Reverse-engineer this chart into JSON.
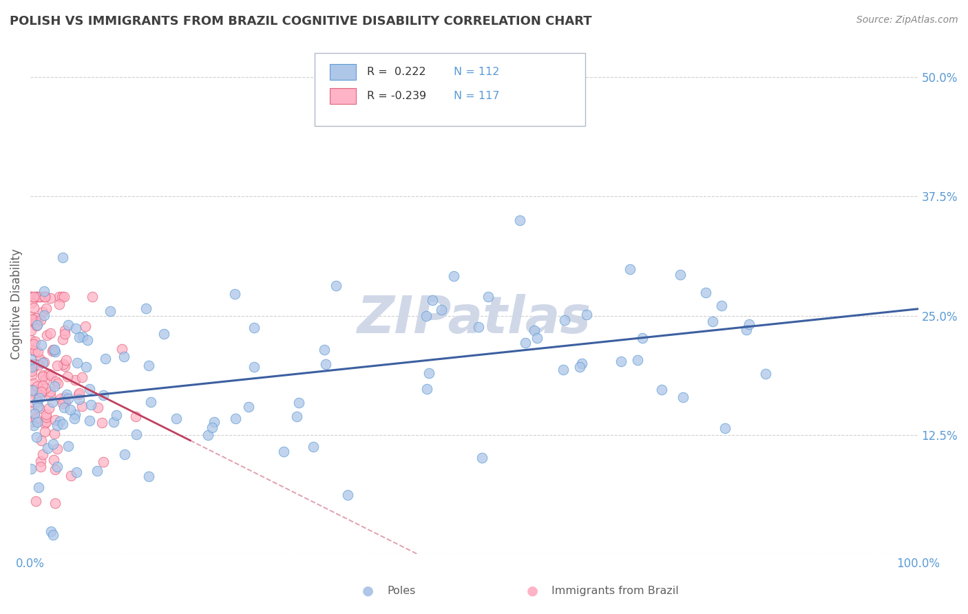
{
  "title": "POLISH VS IMMIGRANTS FROM BRAZIL COGNITIVE DISABILITY CORRELATION CHART",
  "source": "Source: ZipAtlas.com",
  "xlabel_poles": "Poles",
  "xlabel_brazil": "Immigrants from Brazil",
  "ylabel": "Cognitive Disability",
  "r_poles": 0.222,
  "n_poles": 112,
  "r_brazil": -0.239,
  "n_brazil": 117,
  "xlim": [
    0.0,
    1.0
  ],
  "ylim": [
    0.0,
    0.525
  ],
  "yticks": [
    0.0,
    0.125,
    0.25,
    0.375,
    0.5
  ],
  "ytick_labels": [
    "",
    "12.5%",
    "25.0%",
    "37.5%",
    "50.0%"
  ],
  "background_color": "#ffffff",
  "grid_color": "#d0d0d0",
  "poles_color": "#aec6e8",
  "poles_edge_color": "#5b9bd5",
  "brazil_color": "#ffb3c6",
  "brazil_edge_color": "#e0607a",
  "reg_poles_color": "#3c5fa0",
  "reg_brazil_solid_color": "#c04060",
  "reg_brazil_dash_color": "#e0a0b0",
  "watermark": "ZIPatlas",
  "watermark_color": "#d0d8e8",
  "title_color": "#404040",
  "title_fontsize": 13,
  "axis_label_color": "#606060",
  "tick_label_color": "#5b9bd5",
  "legend_r_color": "#333333",
  "legend_n_color": "#5b9bd5",
  "source_color": "#888888"
}
